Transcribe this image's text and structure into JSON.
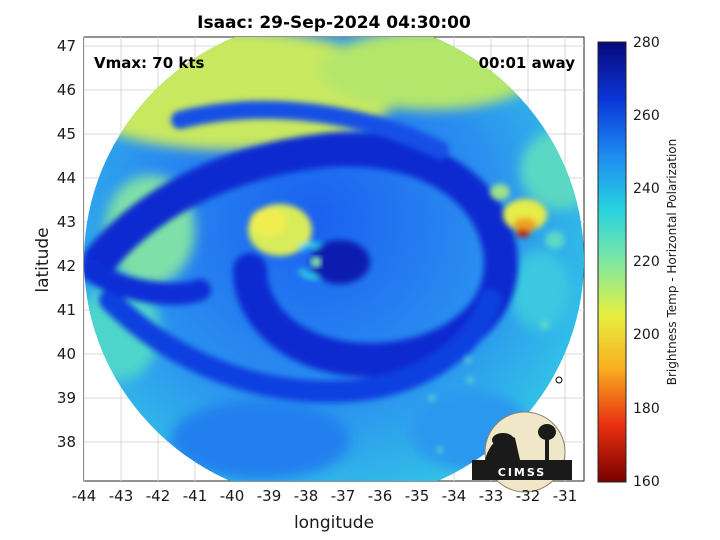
{
  "title": "Isaac: 29-Sep-2024 04:30:00",
  "annotations": {
    "vmax": "Vmax: 70 kts",
    "time_away": "00:01 away"
  },
  "axes": {
    "xlabel": "longitude",
    "ylabel": "latitude",
    "xticks": [
      "-44",
      "-43",
      "-42",
      "-41",
      "-40",
      "-39",
      "-38",
      "-37",
      "-36",
      "-35",
      "-34",
      "-33",
      "-32",
      "-31"
    ],
    "yticks": [
      "47",
      "46",
      "45",
      "44",
      "43",
      "42",
      "41",
      "40",
      "39",
      "38"
    ]
  },
  "colorbar": {
    "label": "Brightness Temp - Horizontal Polarization",
    "ticks": [
      "280",
      "260",
      "240",
      "220",
      "200",
      "180",
      "160"
    ],
    "colors": [
      "#08087a",
      "#0a36d8",
      "#1e8cf0",
      "#28d2e0",
      "#7ee8a0",
      "#e6f040",
      "#f8b020",
      "#e83010",
      "#7a0000"
    ]
  },
  "logo": {
    "text": "CIMSS"
  },
  "colors": {
    "deep_blue": "#0a2ad0",
    "mid_blue": "#1f74f0",
    "cyan": "#2ad4e4",
    "yellow_green": "#d6ec5a"
  }
}
